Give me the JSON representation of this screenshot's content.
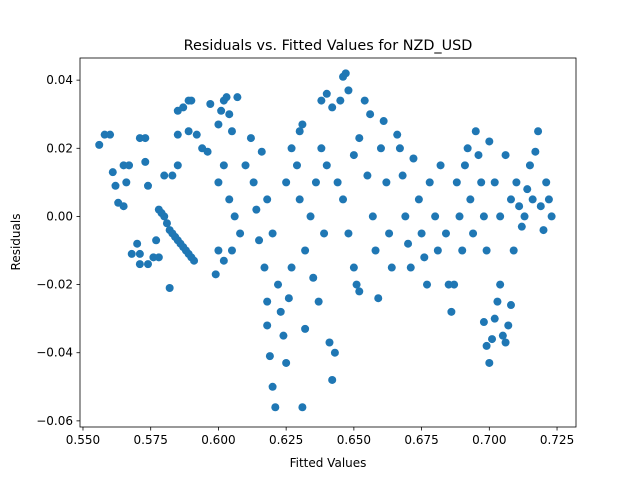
{
  "chart_data": {
    "type": "scatter",
    "title": "Residuals vs. Fitted Values for NZD_USD",
    "x_label": "Fitted Values",
    "y_label": "Residuals",
    "color": "#1f77b4",
    "x": [
      0.556,
      0.558,
      0.56,
      0.561,
      0.562,
      0.563,
      0.565,
      0.565,
      0.567,
      0.566,
      0.568,
      0.57,
      0.571,
      0.571,
      0.571,
      0.573,
      0.573,
      0.574,
      0.574,
      0.576,
      0.578,
      0.577,
      0.578,
      0.579,
      0.58,
      0.581,
      0.582,
      0.583,
      0.584,
      0.585,
      0.586,
      0.587,
      0.588,
      0.589,
      0.59,
      0.591,
      0.582,
      0.58,
      0.583,
      0.585,
      0.585,
      0.587,
      0.589,
      0.59,
      0.585,
      0.589,
      0.592,
      0.594,
      0.596,
      0.597,
      0.6,
      0.601,
      0.602,
      0.603,
      0.604,
      0.605,
      0.607,
      0.6,
      0.602,
      0.604,
      0.606,
      0.608,
      0.6,
      0.602,
      0.605,
      0.599,
      0.61,
      0.612,
      0.613,
      0.614,
      0.615,
      0.617,
      0.618,
      0.618,
      0.619,
      0.62,
      0.621,
      0.616,
      0.618,
      0.62,
      0.622,
      0.623,
      0.624,
      0.625,
      0.626,
      0.627,
      0.625,
      0.627,
      0.629,
      0.63,
      0.631,
      0.632,
      0.631,
      0.63,
      0.632,
      0.634,
      0.636,
      0.637,
      0.635,
      0.638,
      0.639,
      0.64,
      0.641,
      0.642,
      0.643,
      0.638,
      0.64,
      0.642,
      0.645,
      0.646,
      0.647,
      0.648,
      0.644,
      0.646,
      0.648,
      0.65,
      0.651,
      0.652,
      0.65,
      0.652,
      0.654,
      0.656,
      0.655,
      0.657,
      0.658,
      0.659,
      0.66,
      0.661,
      0.662,
      0.663,
      0.664,
      0.666,
      0.667,
      0.668,
      0.669,
      0.67,
      0.671,
      0.672,
      0.674,
      0.675,
      0.676,
      0.677,
      0.678,
      0.68,
      0.681,
      0.682,
      0.684,
      0.685,
      0.686,
      0.687,
      0.688,
      0.689,
      0.69,
      0.691,
      0.692,
      0.693,
      0.694,
      0.695,
      0.696,
      0.697,
      0.698,
      0.699,
      0.7,
      0.698,
      0.699,
      0.7,
      0.701,
      0.702,
      0.703,
      0.704,
      0.705,
      0.706,
      0.707,
      0.708,
      0.702,
      0.704,
      0.706,
      0.708,
      0.71,
      0.711,
      0.712,
      0.714,
      0.715,
      0.716,
      0.717,
      0.718,
      0.719,
      0.72,
      0.721,
      0.722,
      0.723,
      0.713,
      0.709
    ],
    "y": [
      0.021,
      0.024,
      0.024,
      0.013,
      0.009,
      0.004,
      0.003,
      0.015,
      0.015,
      0.01,
      -0.011,
      -0.008,
      -0.011,
      -0.014,
      0.023,
      0.023,
      0.016,
      0.009,
      -0.014,
      -0.012,
      -0.012,
      -0.007,
      0.002,
      0.001,
      0.0,
      -0.002,
      -0.004,
      -0.005,
      -0.006,
      -0.007,
      -0.008,
      -0.009,
      -0.01,
      -0.011,
      -0.012,
      -0.013,
      -0.021,
      0.012,
      0.012,
      0.015,
      0.031,
      0.032,
      0.034,
      0.034,
      0.024,
      0.025,
      0.024,
      0.02,
      0.019,
      0.033,
      0.027,
      0.031,
      0.034,
      0.035,
      0.03,
      0.025,
      0.035,
      0.01,
      0.015,
      0.005,
      0.0,
      -0.005,
      -0.01,
      -0.013,
      -0.01,
      -0.017,
      0.015,
      0.023,
      0.01,
      0.002,
      -0.007,
      -0.015,
      -0.025,
      -0.032,
      -0.041,
      -0.05,
      -0.056,
      0.019,
      0.005,
      -0.005,
      -0.02,
      -0.028,
      -0.035,
      -0.043,
      -0.024,
      -0.015,
      0.01,
      0.02,
      0.015,
      0.025,
      0.027,
      -0.033,
      -0.056,
      0.005,
      -0.01,
      0.0,
      0.01,
      -0.025,
      -0.018,
      0.02,
      -0.005,
      0.015,
      -0.037,
      -0.048,
      -0.04,
      0.034,
      0.036,
      0.032,
      0.034,
      0.041,
      0.042,
      0.037,
      0.01,
      0.005,
      -0.005,
      -0.015,
      -0.02,
      -0.022,
      0.018,
      0.023,
      0.034,
      0.03,
      0.012,
      0.0,
      -0.01,
      -0.024,
      0.02,
      0.028,
      0.01,
      -0.005,
      -0.015,
      0.024,
      0.02,
      0.012,
      0.0,
      -0.008,
      -0.015,
      0.017,
      0.005,
      -0.005,
      -0.012,
      -0.02,
      0.01,
      0.0,
      -0.01,
      0.015,
      -0.005,
      -0.02,
      -0.028,
      -0.02,
      0.01,
      0.0,
      -0.01,
      0.015,
      0.02,
      0.005,
      -0.005,
      0.025,
      0.018,
      0.01,
      0.0,
      -0.01,
      0.022,
      -0.031,
      -0.038,
      -0.043,
      -0.036,
      -0.03,
      -0.025,
      -0.02,
      -0.035,
      -0.037,
      -0.032,
      -0.026,
      0.01,
      0.0,
      0.018,
      0.005,
      0.01,
      0.003,
      -0.003,
      0.008,
      0.015,
      0.005,
      0.019,
      0.025,
      0.003,
      -0.004,
      0.01,
      0.005,
      0.0,
      0.0,
      -0.01
    ],
    "xlim": [
      0.5489,
      0.732
    ],
    "ylim": [
      -0.0618,
      0.0465
    ],
    "xticks": [
      {
        "value": 0.55,
        "label": "0.550"
      },
      {
        "value": 0.575,
        "label": "0.575"
      },
      {
        "value": 0.6,
        "label": "0.600"
      },
      {
        "value": 0.625,
        "label": "0.625"
      },
      {
        "value": 0.65,
        "label": "0.650"
      },
      {
        "value": 0.675,
        "label": "0.675"
      },
      {
        "value": 0.7,
        "label": "0.700"
      },
      {
        "value": 0.725,
        "label": "0.725"
      }
    ],
    "yticks": [
      {
        "value": -0.06,
        "label": "−0.06"
      },
      {
        "value": -0.04,
        "label": "−0.04"
      },
      {
        "value": -0.02,
        "label": "−0.02"
      },
      {
        "value": 0,
        "label": "0.00"
      },
      {
        "value": 0.02,
        "label": "0.02"
      },
      {
        "value": 0.04,
        "label": "0.04"
      }
    ]
  }
}
